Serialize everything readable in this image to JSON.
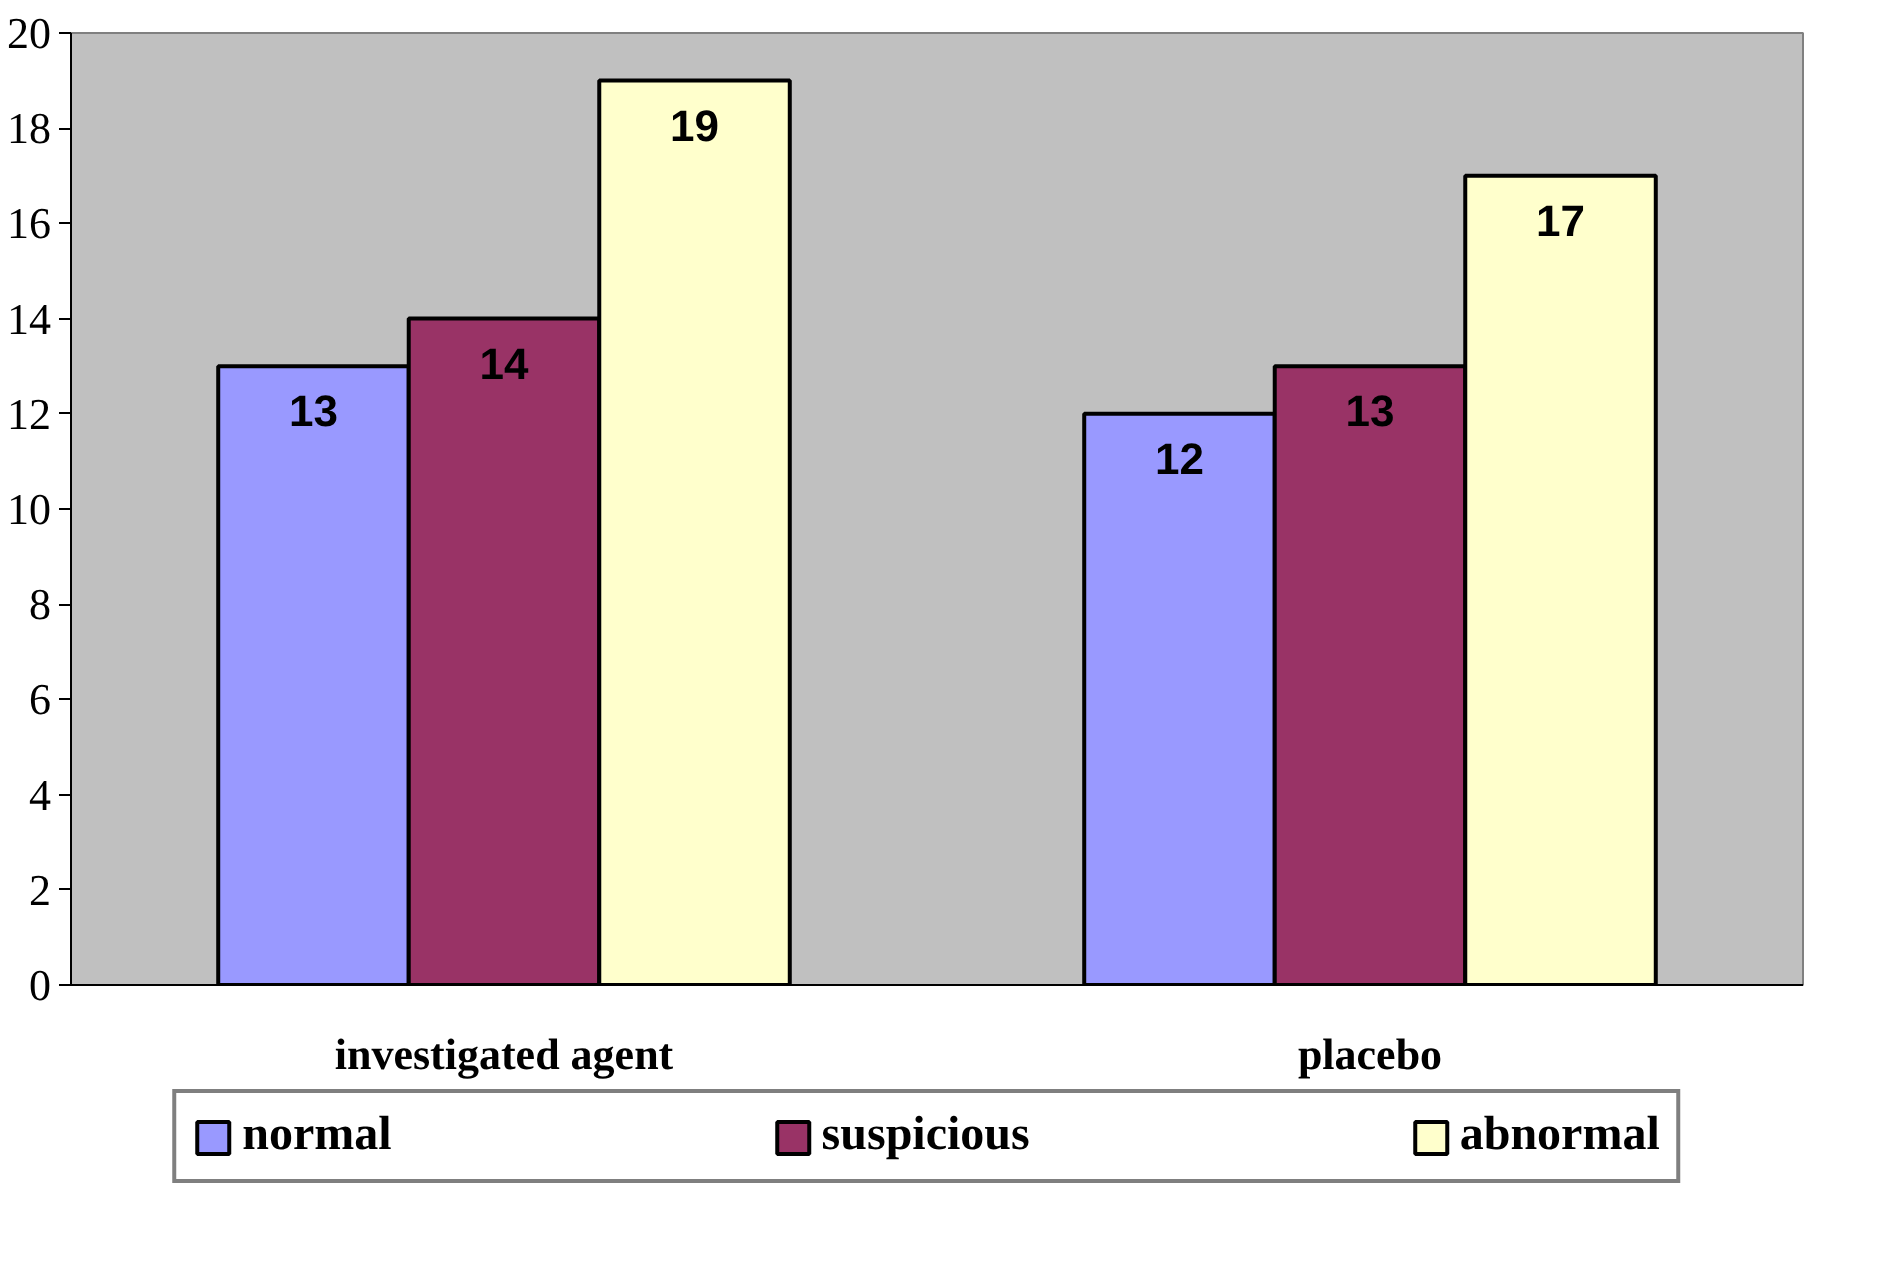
{
  "chart_data": {
    "type": "bar",
    "categories": [
      "investigated agent",
      "placebo"
    ],
    "series": [
      {
        "name": "normal",
        "color": "#9999ff",
        "values": [
          13,
          12
        ]
      },
      {
        "name": "suspicious",
        "color": "#993366",
        "values": [
          14,
          13
        ]
      },
      {
        "name": "abnormal",
        "color": "#ffffcc",
        "values": [
          19,
          17
        ]
      }
    ],
    "ylim": [
      0,
      20
    ],
    "yticks": [
      0,
      2,
      4,
      6,
      8,
      10,
      12,
      14,
      16,
      18,
      20
    ],
    "data_labels": true,
    "grid": false,
    "legend": "bottom"
  }
}
